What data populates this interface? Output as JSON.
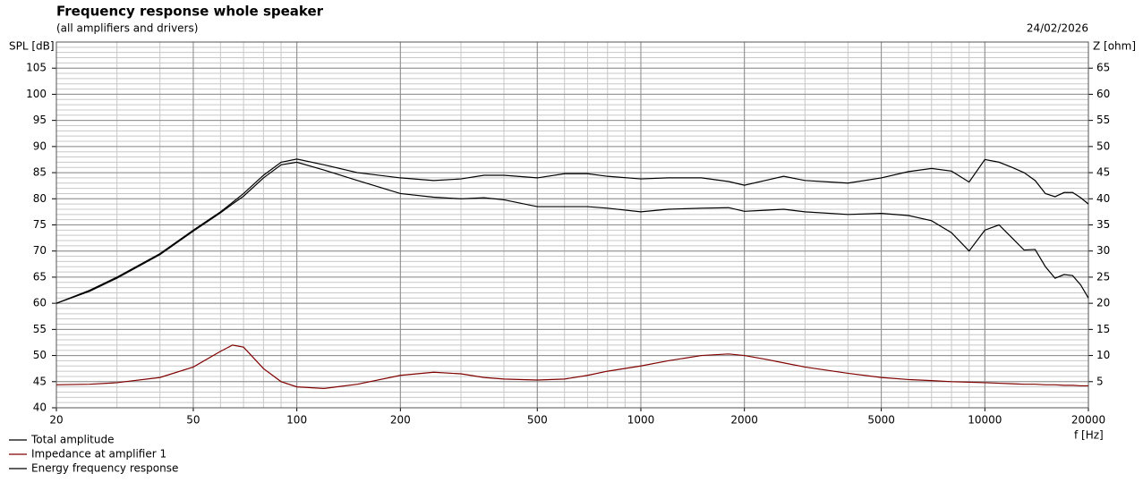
{
  "chart_data": {
    "type": "line",
    "title": "Frequency response whole speaker",
    "subtitle": "(all amplifiers and drivers)",
    "date": "24/02/2026",
    "y_label": "SPL [dB]",
    "y2_label": "Z [ohm]",
    "x_label": "f [Hz]",
    "xscale": "log",
    "grid": true,
    "minor_grid": true,
    "legend": "bottom-left",
    "xlim": [
      20,
      20000
    ],
    "xticks": [
      20,
      50,
      100,
      200,
      500,
      1000,
      2000,
      5000,
      10000,
      20000
    ],
    "ylim": [
      40,
      110
    ],
    "yticks": [
      40,
      45,
      50,
      55,
      60,
      65,
      70,
      75,
      80,
      85,
      90,
      95,
      100,
      105
    ],
    "y2lim": [
      0,
      70
    ],
    "y2ticks": [
      5,
      10,
      15,
      20,
      25,
      30,
      35,
      40,
      45,
      50,
      55,
      60,
      65
    ],
    "x": [
      20,
      25,
      30,
      40,
      50,
      60,
      65,
      70,
      80,
      90,
      100,
      120,
      150,
      200,
      250,
      300,
      350,
      400,
      500,
      600,
      700,
      800,
      1000,
      1200,
      1500,
      1800,
      2000,
      2300,
      2600,
      3000,
      4000,
      5000,
      6000,
      7000,
      8000,
      9000,
      10000,
      11000,
      12000,
      13000,
      14000,
      15000,
      16000,
      17000,
      18000,
      19000,
      20000
    ],
    "series": [
      {
        "name": "Total amplitude",
        "color": "#000000",
        "values": [
          60,
          62.5,
          65,
          69.5,
          74,
          77.5,
          79.3,
          81,
          84.5,
          87,
          87.6,
          86.5,
          85,
          84,
          83.5,
          83.8,
          84.5,
          84.5,
          84,
          84.8,
          84.8,
          84.3,
          83.8,
          84,
          84,
          83.3,
          82.6,
          83.5,
          84.3,
          83.5,
          83,
          84,
          85.2,
          85.8,
          85.3,
          83.2,
          87.5,
          87,
          86,
          85,
          83.5,
          81,
          80.4,
          81.2,
          81.2,
          80.2,
          79
        ]
      },
      {
        "name": "Impedance at amplifier 1",
        "color": "#800000",
        "axis": "y2",
        "values": [
          4.4,
          4.5,
          4.8,
          5.8,
          7.8,
          10.8,
          12,
          11.6,
          7.5,
          5,
          4,
          3.7,
          4.5,
          6.2,
          6.8,
          6.5,
          5.8,
          5.5,
          5.3,
          5.5,
          6.2,
          7,
          8,
          9,
          10,
          10.3,
          10,
          9.3,
          8.6,
          7.8,
          6.6,
          5.8,
          5.4,
          5.2,
          5,
          4.9,
          4.8,
          4.7,
          4.6,
          4.5,
          4.5,
          4.4,
          4.4,
          4.3,
          4.3,
          4.2,
          4.2
        ]
      },
      {
        "name": "Energy frequency response",
        "color": "#000000",
        "values": [
          60,
          62.3,
          64.8,
          69.3,
          73.8,
          77.3,
          79,
          80.5,
          84,
          86.5,
          87,
          85.5,
          83.5,
          81,
          80.3,
          80,
          80.2,
          79.8,
          78.5,
          78.5,
          78.5,
          78.2,
          77.5,
          78,
          78.2,
          78.3,
          77.6,
          77.8,
          78,
          77.5,
          77,
          77.2,
          76.8,
          75.8,
          73.5,
          70,
          74,
          75,
          72.5,
          70.2,
          70.3,
          67,
          64.8,
          65.5,
          65.3,
          63.5,
          61
        ]
      }
    ]
  }
}
